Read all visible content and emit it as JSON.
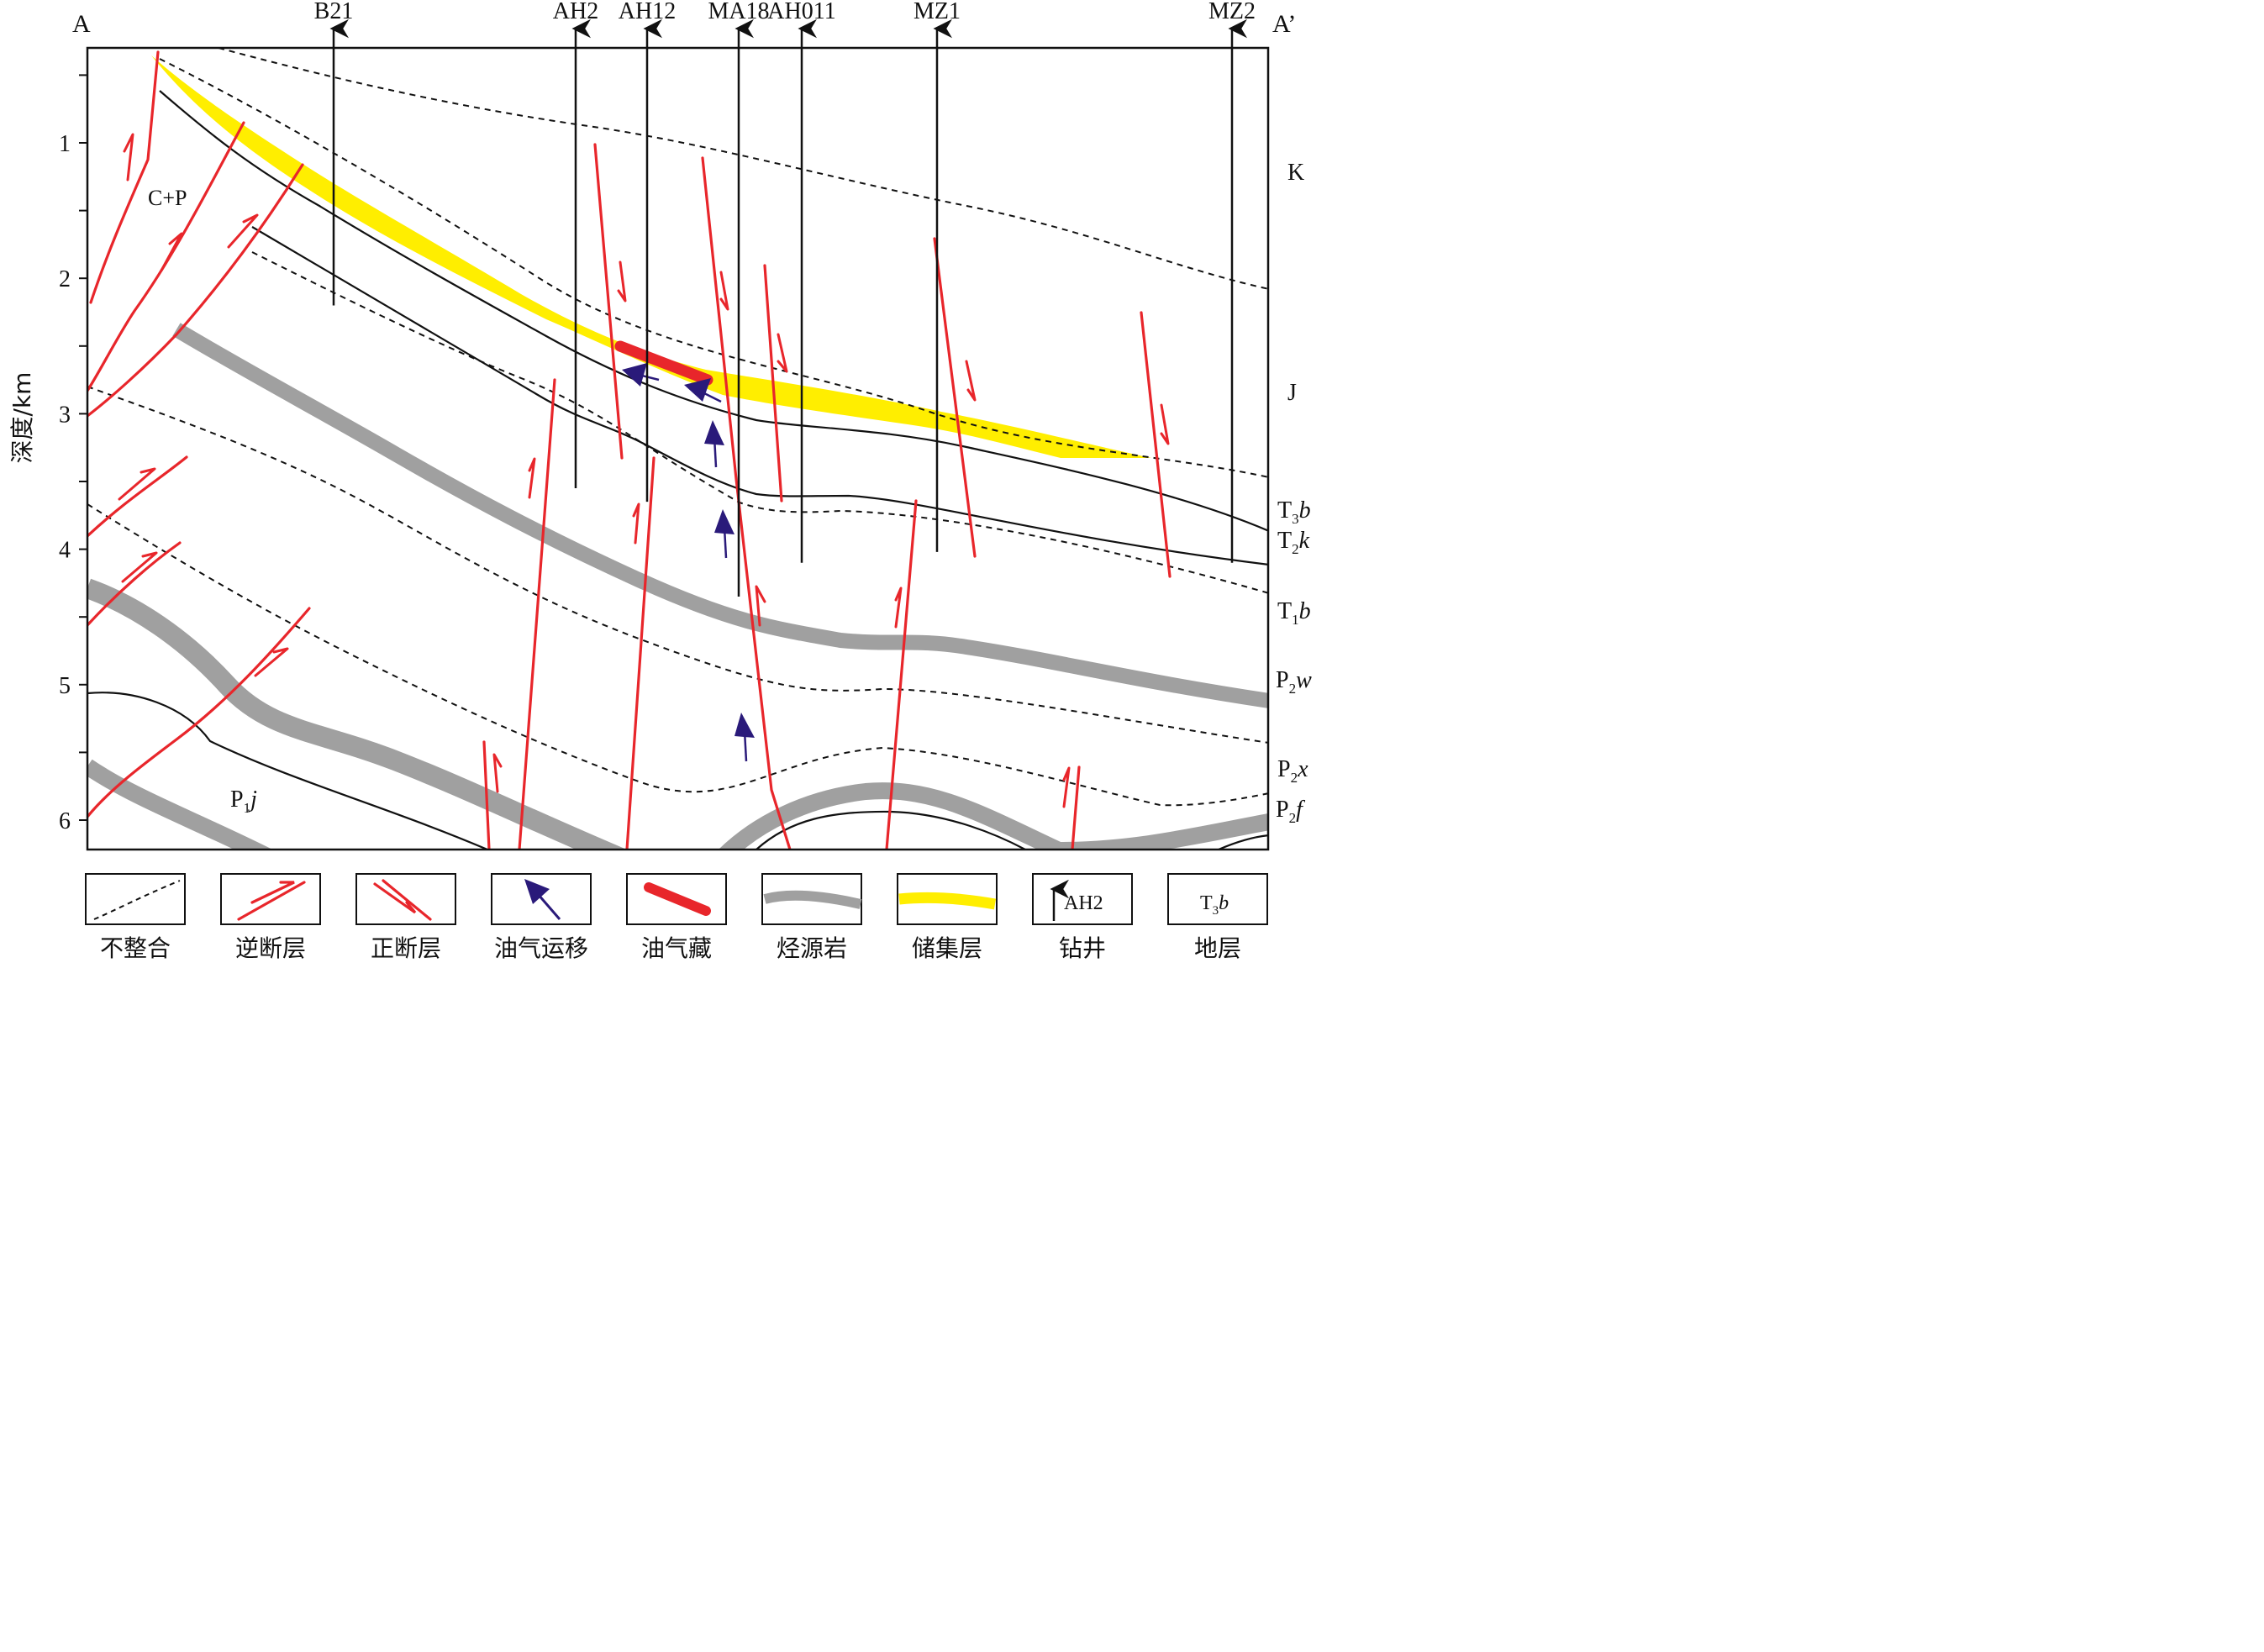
{
  "section": {
    "start_label": "A",
    "end_label": "A’",
    "y_axis_label": "深度/km",
    "y_ticks": [
      "1",
      "2",
      "3",
      "4",
      "5",
      "6"
    ]
  },
  "wells": [
    {
      "name": "B21",
      "bottom_depth_km": 2.2
    },
    {
      "name": "AH2",
      "bottom_depth_km": 3.55
    },
    {
      "name": "AH12",
      "bottom_depth_km": 3.65
    },
    {
      "name": "MA18",
      "bottom_depth_km": 4.35
    },
    {
      "name": "AH011",
      "bottom_depth_km": 4.1
    },
    {
      "name": "MZ1",
      "bottom_depth_km": 4.02
    },
    {
      "name": "MZ2",
      "bottom_depth_km": 4.1
    }
  ],
  "strata_labels": {
    "K": "K",
    "J": "J",
    "T3b": {
      "base": "T",
      "sub": "3",
      "it": "b"
    },
    "T2k": {
      "base": "T",
      "sub": "2",
      "it": "k"
    },
    "T1b": {
      "base": "T",
      "sub": "1",
      "it": "b"
    },
    "P2w": {
      "base": "P",
      "sub": "2",
      "it": "w"
    },
    "P2x": {
      "base": "P",
      "sub": "2",
      "it": "x"
    },
    "P2f": {
      "base": "P",
      "sub": "2",
      "it": "f"
    },
    "CP": "C+P",
    "P1j": {
      "base": "P",
      "sub": "1",
      "it": "j"
    }
  },
  "legend": [
    {
      "key": "unconformity",
      "label": "不整合"
    },
    {
      "key": "reverse-fault",
      "label": "逆断层"
    },
    {
      "key": "normal-fault",
      "label": "正断层"
    },
    {
      "key": "migration",
      "label": "油气运移"
    },
    {
      "key": "reservoir-pool",
      "label": "油气藏"
    },
    {
      "key": "source-rock",
      "label": "烃源岩"
    },
    {
      "key": "reservoir-layer",
      "label": "储集层"
    },
    {
      "key": "well",
      "label": "钻井",
      "sample": "AH2"
    },
    {
      "key": "stratum",
      "label": "地层",
      "sample": {
        "base": "T",
        "sub": "3",
        "it": "b"
      }
    }
  ],
  "colors": {
    "fault": "#e8262b",
    "reservoir": "#ffee00",
    "source_rock": "#a0a0a0",
    "migration": "#2a1a7a",
    "line": "#111111"
  }
}
